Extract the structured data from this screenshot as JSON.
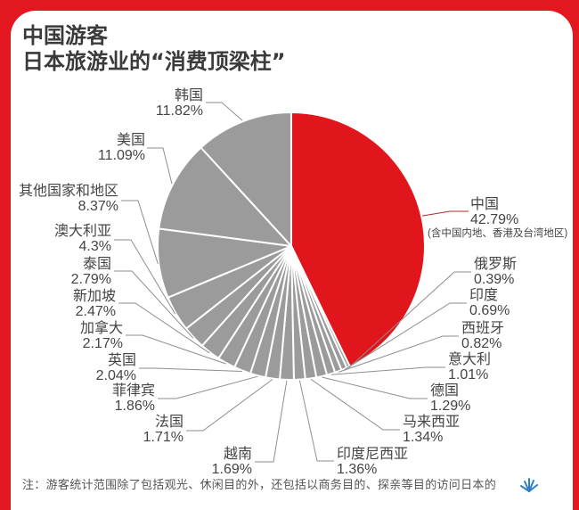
{
  "header": {
    "title_line1": "中国游客",
    "title_line2": "日本旅游业的“消费顶梁柱”"
  },
  "chart_data": {
    "type": "pie",
    "title": "中国游客 日本旅游业的“消费顶梁柱”",
    "categories": [
      "中国",
      "俄罗斯",
      "印度",
      "西班牙",
      "意大利",
      "德国",
      "马来西亚",
      "印度尼西亚",
      "越南",
      "法国",
      "菲律宾",
      "英国",
      "加拿大",
      "新加坡",
      "泰国",
      "澳大利亚",
      "其他国家和地区",
      "美国",
      "韩国"
    ],
    "values": [
      42.79,
      0.39,
      0.69,
      0.82,
      1.01,
      1.29,
      1.34,
      1.36,
      1.69,
      1.71,
      1.86,
      2.04,
      2.17,
      2.47,
      2.79,
      4.3,
      8.37,
      11.09,
      11.82
    ],
    "value_labels": [
      "42.79%",
      "0.39%",
      "0.69%",
      "0.82%",
      "1.01%",
      "1.29%",
      "1.34%",
      "1.36%",
      "1.69%",
      "1.71%",
      "1.86%",
      "2.04%",
      "2.17%",
      "2.47%",
      "2.79%",
      "4.3%",
      "8.37%",
      "11.09%",
      "11.82%"
    ],
    "unit": "%",
    "annotations": [
      {
        "category": "中国",
        "text": "(含中国内地、香港及台湾地区)"
      }
    ],
    "highlight_category": "中国",
    "colors": {
      "highlight": "#e1161c",
      "default": "#9b9b9b",
      "separator": "#ffffff",
      "leader": "#8e8e8e",
      "leader_highlight": "#b3262b"
    },
    "start_angle": "12 o'clock",
    "direction": "clockwise",
    "legend": "none",
    "grid": false
  },
  "footnote": "注：游客统计范围除了包括观光、休闲目的外，还包括以商务目的、探亲等目的访问日本的",
  "logo": {
    "icon": "sparkle-logo-icon",
    "color": "#2f7fc8"
  },
  "theme": {
    "frame_color": "#e3171f",
    "panel_color": "#ffffff",
    "title_color": "#3a3a3a"
  }
}
